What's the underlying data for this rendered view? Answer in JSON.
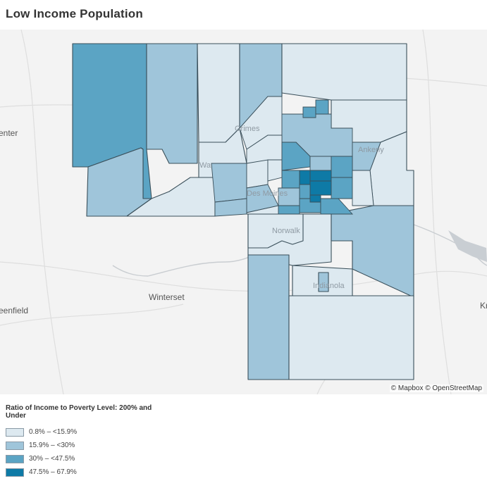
{
  "title": "Low Income Population",
  "map": {
    "places": {
      "center": "enter",
      "winterset": "Winterset",
      "greenfield": "eenfield",
      "knoxville": "Kn",
      "norwalk": "Norwalk",
      "indianola": "Indianola",
      "ankeny": "Ankeny",
      "des_moines": "Des Moines",
      "waukee": "Wa",
      "grimes": "Grimes"
    },
    "attribution": "© Mapbox © OpenStreetMap"
  },
  "legend": {
    "title": "Ratio of Income to Poverty Level: 200% and Under",
    "items": [
      {
        "label": "0.8% – <15.9%",
        "color": "#dde9f0"
      },
      {
        "label": "15.9% – <30%",
        "color": "#9fc5da"
      },
      {
        "label": "30% – <47.5%",
        "color": "#5ba4c4"
      },
      {
        "label": "47.5% – 67.9%",
        "color": "#0e7aa6"
      }
    ]
  }
}
